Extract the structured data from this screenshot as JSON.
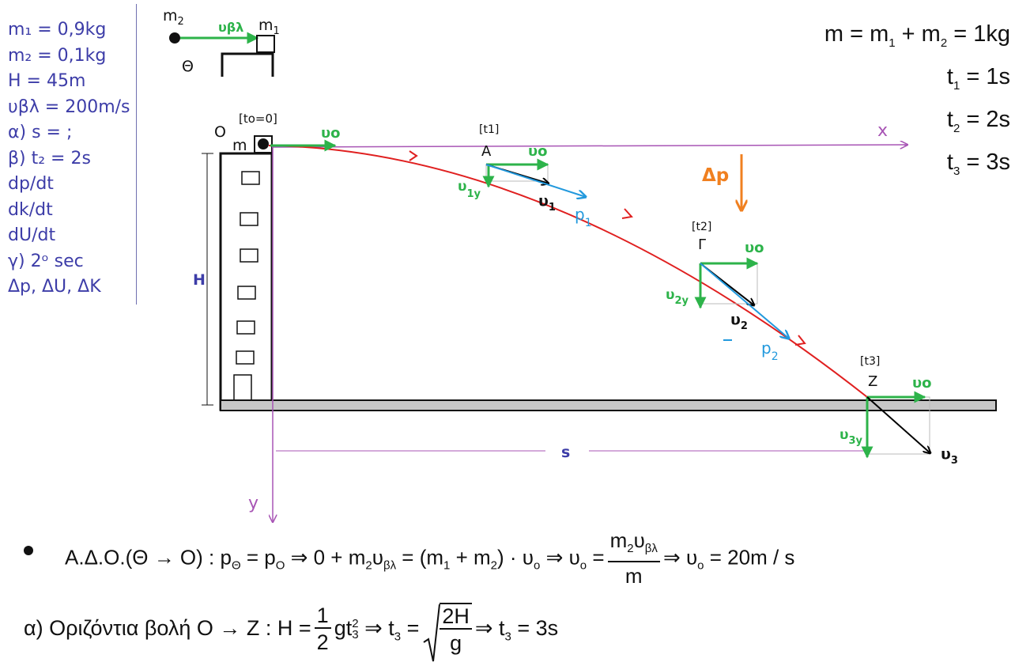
{
  "given": {
    "lines": [
      "m₁ = 0,9kg",
      "m₂ = 0,1kg",
      "H = 45m",
      "υβλ = 200m/s",
      "α) s = ;",
      "β) t₂ = 2s",
      "dp/dt",
      "dk/dt",
      "dU/dt",
      "γ) 2ᵒ sec",
      "Δp, ΔU, ΔK"
    ]
  },
  "collision_sketch": {
    "m2_label": "m",
    "m2_sub": "2",
    "m1_label": "m",
    "m1_sub": "1",
    "velocity_label": "υβλ",
    "point_label": "Θ"
  },
  "diagram": {
    "origin_label": "O",
    "t0_label": "[to=0]",
    "mass_label": "m",
    "x_axis_label": "x",
    "y_axis_label": "y",
    "H_label": "H",
    "s_label": "s",
    "v0_label": "υo",
    "delta_p_label": "Δp",
    "points": {
      "A": {
        "time": "[t1]",
        "name": "A",
        "vy": "υ",
        "vy_sub": "1y",
        "v": "υ",
        "v_sub": "1",
        "p": "p",
        "p_sub": "1"
      },
      "G": {
        "time": "[t2]",
        "name": "Γ",
        "vy": "υ",
        "vy_sub": "2y",
        "v": "υ",
        "v_sub": "2",
        "p": "p",
        "p_sub": "2"
      },
      "Z": {
        "time": "[t3]",
        "name": "Z",
        "vy": "υ",
        "vy_sub": "3y",
        "v": "υ",
        "v_sub": "3"
      }
    }
  },
  "right_equations": {
    "mass": {
      "lhs": "m = m",
      "s1": "1",
      "mid": " + m",
      "s2": "2",
      "rhs": " = 1kg"
    },
    "t1": {
      "lhs": "t",
      "sub": "1",
      "rhs": " = 1s"
    },
    "t2": {
      "lhs": "t",
      "sub": "2",
      "rhs": " = 2s"
    },
    "t3": {
      "lhs": "t",
      "sub": "3",
      "rhs": " = 3s"
    }
  },
  "equation1": {
    "part1": "Α.Δ.Ο.(Θ → Ο) : p",
    "sub_theta": "Θ",
    "part2": " = p",
    "sub_o": "Ο",
    "part3": " ⇒ 0 + m",
    "sub_2a": "2",
    "part4": "υ",
    "sub_bl": "βλ",
    "part5": " = (m",
    "sub_1": "1",
    "part6": " + m",
    "sub_2b": "2",
    "part7": ") · υ",
    "sub_o2": "ο",
    "part8": " ⇒ υ",
    "sub_o3": "ο",
    "part9": " =",
    "frac_num_a": "m",
    "frac_num_sub": "2",
    "frac_num_b": "υ",
    "frac_num_sub2": "βλ",
    "frac_den": "m",
    "part10": "⇒ υ",
    "sub_o4": "ο",
    "part11": " = 20m / s"
  },
  "equation2": {
    "part1": "α)  Οριζόντια βολή Ο → Ζ :  H =",
    "frac_num": "1",
    "frac_den": "2",
    "part2": "gt",
    "sub": "3",
    "sup": "2",
    "part3": " ⇒ t",
    "sub2": "3",
    "part4": " =",
    "sqrt_num": "2H",
    "sqrt_den": "g",
    "part5": "⇒ t",
    "sub3": "3",
    "part6": " = 3s"
  },
  "colors": {
    "trajectory": "#e02020",
    "velocity": "#2db34a",
    "momentum": "#2299dd",
    "resultant": "#000000",
    "delta_p": "#f08020",
    "axes": "#a855b5",
    "given_text": "#3d3da8"
  }
}
